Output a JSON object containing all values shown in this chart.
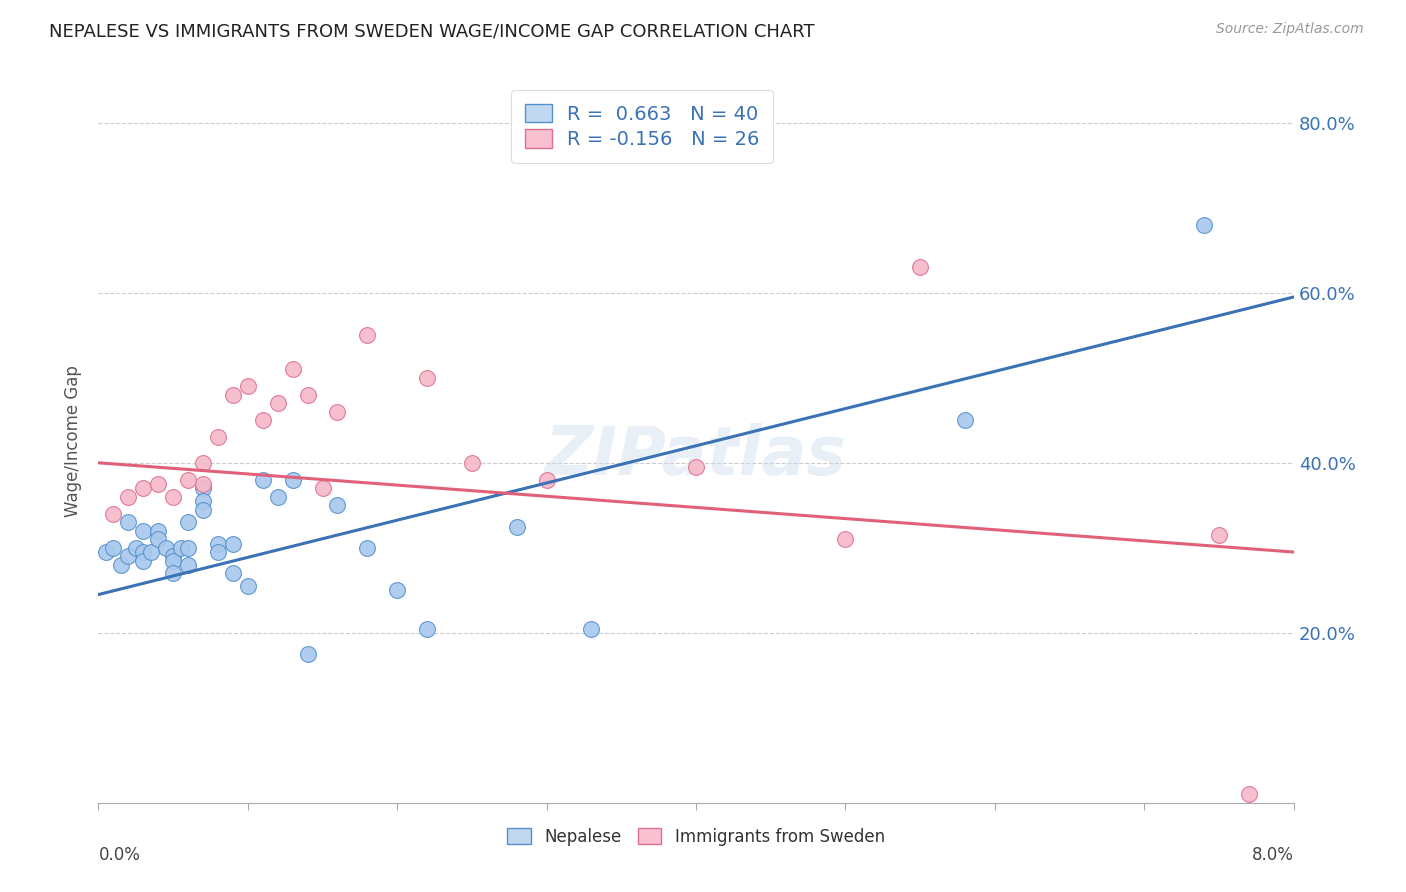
{
  "title": "NEPALESE VS IMMIGRANTS FROM SWEDEN WAGE/INCOME GAP CORRELATION CHART",
  "source": "Source: ZipAtlas.com",
  "ylabel": "Wage/Income Gap",
  "ytick_labels": [
    "20.0%",
    "40.0%",
    "60.0%",
    "80.0%"
  ],
  "ytick_values": [
    0.2,
    0.4,
    0.6,
    0.8
  ],
  "xmin": 0.0,
  "xmax": 0.08,
  "ymin": 0.0,
  "ymax": 0.85,
  "blue_color": "#A8C8EE",
  "blue_edge_color": "#5590CC",
  "blue_line_color": "#3A72B5",
  "pink_color": "#F5B8C8",
  "pink_edge_color": "#E07090",
  "pink_line_color": "#E0607A",
  "legend_blue_fill": "#C0D8F0",
  "legend_pink_fill": "#F8C0D0",
  "R_blue": 0.663,
  "N_blue": 40,
  "R_pink": -0.156,
  "N_pink": 26,
  "watermark": "ZIPatlas",
  "blue_line_x0": 0.0,
  "blue_line_y0": 0.245,
  "blue_line_x1": 0.08,
  "blue_line_y1": 0.595,
  "pink_line_x0": 0.0,
  "pink_line_y0": 0.4,
  "pink_line_x1": 0.08,
  "pink_line_y1": 0.295,
  "nepalese_x": [
    0.0005,
    0.001,
    0.0015,
    0.002,
    0.002,
    0.0025,
    0.003,
    0.003,
    0.003,
    0.0035,
    0.004,
    0.004,
    0.0045,
    0.005,
    0.005,
    0.005,
    0.0055,
    0.006,
    0.006,
    0.006,
    0.007,
    0.007,
    0.007,
    0.008,
    0.008,
    0.009,
    0.009,
    0.01,
    0.011,
    0.012,
    0.013,
    0.014,
    0.016,
    0.018,
    0.02,
    0.022,
    0.028,
    0.033,
    0.058,
    0.074
  ],
  "nepalese_y": [
    0.295,
    0.3,
    0.28,
    0.29,
    0.33,
    0.3,
    0.32,
    0.295,
    0.285,
    0.295,
    0.32,
    0.31,
    0.3,
    0.29,
    0.285,
    0.27,
    0.3,
    0.33,
    0.3,
    0.28,
    0.37,
    0.355,
    0.345,
    0.305,
    0.295,
    0.305,
    0.27,
    0.255,
    0.38,
    0.36,
    0.38,
    0.175,
    0.35,
    0.3,
    0.25,
    0.205,
    0.325,
    0.205,
    0.45,
    0.68
  ],
  "sweden_x": [
    0.001,
    0.002,
    0.003,
    0.004,
    0.005,
    0.006,
    0.007,
    0.007,
    0.008,
    0.009,
    0.01,
    0.011,
    0.012,
    0.013,
    0.014,
    0.015,
    0.016,
    0.018,
    0.022,
    0.025,
    0.03,
    0.04,
    0.05,
    0.055,
    0.075,
    0.077
  ],
  "sweden_y": [
    0.34,
    0.36,
    0.37,
    0.375,
    0.36,
    0.38,
    0.375,
    0.4,
    0.43,
    0.48,
    0.49,
    0.45,
    0.47,
    0.51,
    0.48,
    0.37,
    0.46,
    0.55,
    0.5,
    0.4,
    0.38,
    0.395,
    0.31,
    0.63,
    0.315,
    0.01
  ]
}
